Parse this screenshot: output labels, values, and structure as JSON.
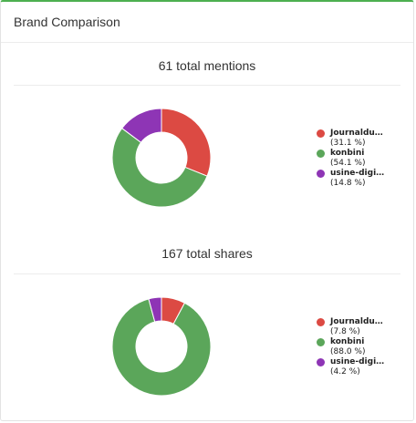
{
  "card": {
    "title": "Brand Comparison",
    "accent": "#4caf50"
  },
  "chart_data": [
    {
      "type": "pie",
      "title": "61 total mentions",
      "categories": [
        "Journaldu…",
        "konbini",
        "usine-digi…"
      ],
      "values": [
        31.1,
        54.1,
        14.8
      ],
      "value_labels": [
        "(31.1 %)",
        "(54.1 %)",
        "(14.8 %)"
      ],
      "colors": [
        "#dc4a43",
        "#5ba65a",
        "#8e35b5"
      ],
      "donut": true,
      "legend_position": "right"
    },
    {
      "type": "pie",
      "title": "167 total shares",
      "categories": [
        "Journaldu…",
        "konbini",
        "usine-digi…"
      ],
      "values": [
        7.8,
        88.0,
        4.2
      ],
      "value_labels": [
        "(7.8 %)",
        "(88.0 %)",
        "(4.2 %)"
      ],
      "colors": [
        "#dc4a43",
        "#5ba65a",
        "#8e35b5"
      ],
      "donut": true,
      "legend_position": "right"
    }
  ]
}
